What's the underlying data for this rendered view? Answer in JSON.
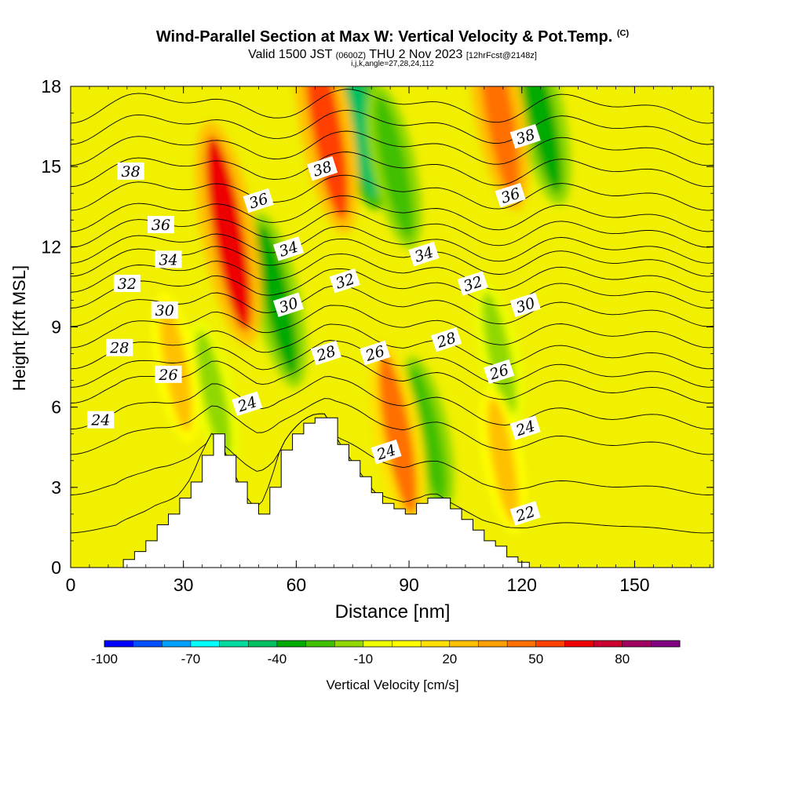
{
  "header": {
    "title": "Wind-Parallel Section at Max W: Vertical Velocity & Pot.Temp.",
    "title_mark": "(C)",
    "valid_prefix": "Valid 1500 JST",
    "valid_utc": "(0600Z)",
    "valid_date": "THU 2 Nov 2023",
    "forecast": "[12hrFcst@2148z]",
    "indices": "i,j,k,angle=27,28,24,112"
  },
  "chart_data": {
    "type": "heatmap",
    "xlabel": "Distance [nm]",
    "ylabel": "Height [Kft MSL]",
    "xlim": [
      0,
      171
    ],
    "ylim": [
      0,
      18
    ],
    "xticks": [
      "0",
      "30",
      "60",
      "90",
      "120",
      "150"
    ],
    "yticks": [
      "0",
      "3",
      "6",
      "9",
      "12",
      "15",
      "18"
    ],
    "colorbar": {
      "label": "Vertical Velocity [cm/s]",
      "tick_labels": [
        "-100",
        "-70",
        "-40",
        "-10",
        "20",
        "50",
        "80"
      ],
      "levels": [
        -100,
        -90,
        -80,
        -70,
        -60,
        -50,
        -40,
        -30,
        -20,
        -10,
        0,
        10,
        20,
        30,
        40,
        50,
        60,
        70,
        80,
        90
      ],
      "colors": [
        "#0000ff",
        "#0050ff",
        "#00a0ff",
        "#00ffff",
        "#00dca0",
        "#00c060",
        "#00aa00",
        "#40c000",
        "#90d800",
        "#eeff00",
        "#ffff00",
        "#ffe000",
        "#ffc000",
        "#ffa000",
        "#ff7000",
        "#ff4000",
        "#ee0000",
        "#cc0030",
        "#a00060",
        "#800080"
      ]
    },
    "updrafts": [
      {
        "x": 42,
        "z": 12.5,
        "w": 60
      },
      {
        "x": 68,
        "z": 16.5,
        "w": 55
      },
      {
        "x": 114,
        "z": 17,
        "w": 45
      },
      {
        "x": 87,
        "z": 5,
        "w": 40
      },
      {
        "x": 28,
        "z": 7.5,
        "w": 22
      },
      {
        "x": 115,
        "z": 4,
        "w": 20
      }
    ],
    "downdrafts": [
      {
        "x": 55,
        "z": 10,
        "w": -35
      },
      {
        "x": 76,
        "z": 17,
        "w": -45
      },
      {
        "x": 86,
        "z": 15,
        "w": -30
      },
      {
        "x": 125,
        "z": 17,
        "w": -40
      },
      {
        "x": 95,
        "z": 5,
        "w": -25
      },
      {
        "x": 38,
        "z": 6.5,
        "w": -20
      },
      {
        "x": 114,
        "z": 8,
        "w": -18
      }
    ],
    "terrain": {
      "x": [
        0,
        12,
        14,
        17,
        20,
        23,
        26,
        29,
        32,
        35,
        38,
        41,
        44,
        47,
        50,
        53,
        56,
        59,
        62,
        65,
        68,
        71,
        74,
        77,
        80,
        83,
        86,
        89,
        92,
        95,
        98,
        101,
        104,
        107,
        110,
        113,
        116,
        119,
        122,
        171
      ],
      "z": [
        0,
        0,
        0.3,
        0.6,
        1.0,
        1.6,
        2.0,
        2.6,
        3.2,
        4.2,
        5.0,
        4.2,
        3.2,
        2.4,
        2.0,
        3.0,
        4.4,
        5.0,
        5.4,
        5.6,
        5.6,
        4.6,
        4.0,
        3.4,
        2.8,
        2.4,
        2.2,
        2.0,
        2.4,
        2.6,
        2.6,
        2.2,
        1.8,
        1.4,
        1.0,
        0.8,
        0.4,
        0.2,
        0,
        0
      ]
    },
    "isentropes": [
      {
        "level": 22,
        "label": "22",
        "z": 1.5
      },
      {
        "level": 23,
        "label": "",
        "z": 3.0
      },
      {
        "level": 24,
        "label": "24",
        "z": 4.6
      },
      {
        "level": 25,
        "label": "",
        "z": 5.6
      },
      {
        "level": 26,
        "label": "26",
        "z": 6.6
      },
      {
        "level": 27,
        "label": "",
        "z": 7.2
      },
      {
        "level": 28,
        "label": "28",
        "z": 7.9
      },
      {
        "level": 29,
        "label": "",
        "z": 8.7
      },
      {
        "level": 30,
        "label": "30",
        "z": 9.5
      },
      {
        "level": 31,
        "label": "",
        "z": 10.2
      },
      {
        "level": 32,
        "label": "32",
        "z": 10.8
      },
      {
        "level": 33,
        "label": "",
        "z": 11.4
      },
      {
        "level": 34,
        "label": "34",
        "z": 11.9
      },
      {
        "level": 35,
        "label": "",
        "z": 12.5
      },
      {
        "level": 36,
        "label": "36",
        "z": 13.1
      },
      {
        "level": 37,
        "label": "",
        "z": 13.9
      },
      {
        "level": 38,
        "label": "38",
        "z": 14.8
      },
      {
        "level": 39,
        "label": "",
        "z": 15.6
      },
      {
        "level": 40,
        "label": "",
        "z": 16.4
      },
      {
        "level": 41,
        "label": "",
        "z": 17.2
      }
    ],
    "contour_labels": [
      {
        "text": "38",
        "x": 16,
        "z": 14.8
      },
      {
        "text": "36",
        "x": 24,
        "z": 12.8
      },
      {
        "text": "34",
        "x": 26,
        "z": 11.5
      },
      {
        "text": "32",
        "x": 15,
        "z": 10.6
      },
      {
        "text": "30",
        "x": 25,
        "z": 9.6
      },
      {
        "text": "28",
        "x": 13,
        "z": 8.2
      },
      {
        "text": "26",
        "x": 26,
        "z": 7.2
      },
      {
        "text": "24",
        "x": 8,
        "z": 5.5
      },
      {
        "text": "24",
        "x": 47,
        "z": 6.1
      },
      {
        "text": "36",
        "x": 50,
        "z": 13.7
      },
      {
        "text": "34",
        "x": 58,
        "z": 11.9
      },
      {
        "text": "30",
        "x": 58,
        "z": 9.8
      },
      {
        "text": "28",
        "x": 68,
        "z": 8.0
      },
      {
        "text": "38",
        "x": 67,
        "z": 14.9
      },
      {
        "text": "32",
        "x": 73,
        "z": 10.7
      },
      {
        "text": "26",
        "x": 81,
        "z": 8.0
      },
      {
        "text": "24",
        "x": 84,
        "z": 4.3
      },
      {
        "text": "34",
        "x": 94,
        "z": 11.7
      },
      {
        "text": "28",
        "x": 100,
        "z": 8.5
      },
      {
        "text": "32",
        "x": 107,
        "z": 10.6
      },
      {
        "text": "38",
        "x": 121,
        "z": 16.1
      },
      {
        "text": "36",
        "x": 117,
        "z": 13.9
      },
      {
        "text": "30",
        "x": 121,
        "z": 9.8
      },
      {
        "text": "26",
        "x": 114,
        "z": 7.3
      },
      {
        "text": "24",
        "x": 121,
        "z": 5.2
      },
      {
        "text": "22",
        "x": 121,
        "z": 2.0
      }
    ]
  }
}
